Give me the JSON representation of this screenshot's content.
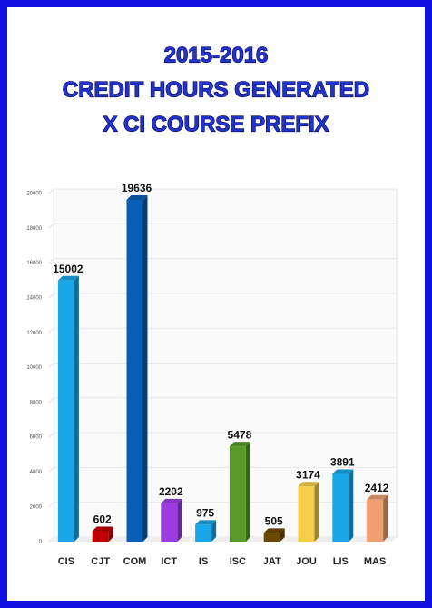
{
  "chart_data": {
    "type": "bar",
    "title": [
      "2015-2016",
      "CREDIT HOURS GENERATED",
      "X CI COURSE PREFIX"
    ],
    "categories": [
      "CIS",
      "CJT",
      "COM",
      "ICT",
      "IS",
      "ISC",
      "JAT",
      "JOU",
      "LIS",
      "MAS"
    ],
    "values": [
      15002,
      602,
      19636,
      2202,
      975,
      5478,
      505,
      3174,
      3891,
      2412
    ],
    "colors": [
      "#1aa7e8",
      "#c00000",
      "#0a5fb4",
      "#9b3de0",
      "#1aa7e8",
      "#5a9a2a",
      "#6b4a00",
      "#f5cf4a",
      "#1aa7e8",
      "#f0a070"
    ],
    "ylim": [
      0,
      20000
    ],
    "yticks": [
      0,
      2000,
      4000,
      6000,
      8000,
      10000,
      12000,
      14000,
      16000,
      18000,
      20000
    ],
    "grid": true
  }
}
